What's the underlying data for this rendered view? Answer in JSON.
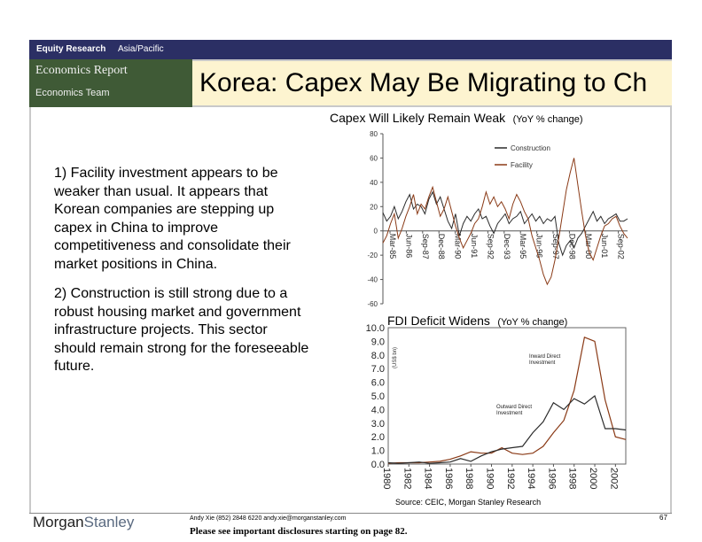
{
  "header": {
    "section": "Equity Research",
    "region": "Asia/Pacific",
    "report_type": "Economics Report",
    "team": "Economics Team",
    "title": "Korea: Capex May Be Migrating to Ch"
  },
  "bullets": [
    "1) Facility investment appears to be weaker than usual.  It appears that Korean companies are stepping up capex in China to improve competitiveness and consolidate their market positions in China.",
    "2) Construction is still strong due to a robust housing market and government infrastructure projects. This sector should remain strong for the foreseeable future."
  ],
  "chart_data": [
    {
      "type": "line",
      "title": "Capex Will Likely Remain Weak",
      "subtitle": "(YoY % change)",
      "ylim": [
        -60,
        80
      ],
      "yticks": [
        80,
        60,
        40,
        20,
        0,
        -20,
        -40,
        -60
      ],
      "xticks": [
        "Mar-85",
        "Jun-86",
        "Sep-87",
        "Dec-88",
        "Mar-90",
        "Jun-91",
        "Sep-92",
        "Dec-93",
        "Mar-95",
        "Jun-96",
        "Sep-97",
        "Dec-98",
        "Mar-00",
        "Jun-01",
        "Sep-02"
      ],
      "series": [
        {
          "name": "Construction",
          "color": "#2b2b2b",
          "values": [
            15,
            8,
            12,
            20,
            10,
            16,
            24,
            30,
            18,
            22,
            20,
            14,
            26,
            32,
            22,
            28,
            18,
            8,
            2,
            14,
            -4,
            6,
            12,
            8,
            14,
            18,
            10,
            12,
            4,
            -2,
            6,
            10,
            14,
            6,
            10,
            12,
            16,
            6,
            10,
            14,
            8,
            12,
            6,
            10,
            8,
            12,
            -10,
            -20,
            -12,
            -8,
            -14,
            -6,
            -2,
            4,
            10,
            16,
            8,
            12,
            6,
            10,
            12,
            14,
            8,
            8,
            10
          ]
        },
        {
          "name": "Facility",
          "color": "#8a3a16",
          "values": [
            -10,
            -4,
            6,
            14,
            -6,
            2,
            12,
            20,
            30,
            14,
            22,
            18,
            28,
            36,
            24,
            12,
            18,
            28,
            16,
            4,
            -6,
            -14,
            -8,
            -2,
            6,
            10,
            20,
            32,
            22,
            28,
            20,
            24,
            18,
            10,
            22,
            30,
            24,
            16,
            10,
            -4,
            -14,
            -24,
            -36,
            -44,
            -38,
            -24,
            -6,
            14,
            34,
            48,
            60,
            38,
            16,
            -4,
            -18,
            -24,
            -14,
            -4,
            4,
            6,
            10,
            12,
            4,
            -2,
            -6
          ]
        }
      ]
    },
    {
      "type": "line",
      "title": "FDI Deficit Widens",
      "subtitle": "(YoY % change)",
      "ylabel": "(US$ bn)",
      "ylim": [
        0,
        10
      ],
      "yticks": [
        "10.0",
        "9.0",
        "8.0",
        "7.0",
        "6.0",
        "5.0",
        "4.0",
        "3.0",
        "2.0",
        "1.0",
        "0.0"
      ],
      "xticks": [
        "1980",
        "1982",
        "1984",
        "1986",
        "1988",
        "1990",
        "1992",
        "1994",
        "1996",
        "1998",
        "2000",
        "2002"
      ],
      "annotations": [
        "Inward Direct Investment",
        "Outward Direct Investment"
      ],
      "series": [
        {
          "name": "Inward Direct Investment",
          "color": "#8a3a16",
          "x": [
            1980,
            1981,
            1982,
            1983,
            1984,
            1985,
            1986,
            1987,
            1988,
            1989,
            1990,
            1991,
            1992,
            1993,
            1994,
            1995,
            1996,
            1997,
            1998,
            1999,
            2000,
            2001,
            2002,
            2003
          ],
          "values": [
            0.05,
            0.1,
            0.1,
            0.1,
            0.15,
            0.2,
            0.35,
            0.6,
            0.9,
            0.8,
            0.8,
            1.2,
            0.8,
            0.7,
            0.8,
            1.3,
            2.3,
            3.2,
            5.4,
            9.3,
            9.0,
            4.7,
            2.0,
            1.8
          ]
        },
        {
          "name": "Outward Direct Investment",
          "color": "#2b2b2b",
          "x": [
            1980,
            1981,
            1982,
            1983,
            1984,
            1985,
            1986,
            1987,
            1988,
            1989,
            1990,
            1991,
            1992,
            1993,
            1994,
            1995,
            1996,
            1997,
            1998,
            1999,
            2000,
            2001,
            2002,
            2003
          ],
          "values": [
            0.1,
            0.05,
            0.1,
            0.15,
            0.05,
            0.1,
            0.15,
            0.4,
            0.2,
            0.6,
            0.9,
            1.1,
            1.2,
            1.3,
            2.3,
            3.1,
            4.5,
            4.0,
            4.8,
            4.4,
            5.0,
            2.6,
            2.6,
            2.5
          ]
        }
      ]
    }
  ],
  "source": "Source: CEIC, Morgan Stanley Research",
  "footer": {
    "logo_left": "Morgan",
    "logo_right": "Stanley",
    "contact": "Andy Xie (852) 2848 6220  andy.xie@morganstanley.com",
    "disclosure": "Please see important disclosures starting on page 82.",
    "page": "67"
  }
}
